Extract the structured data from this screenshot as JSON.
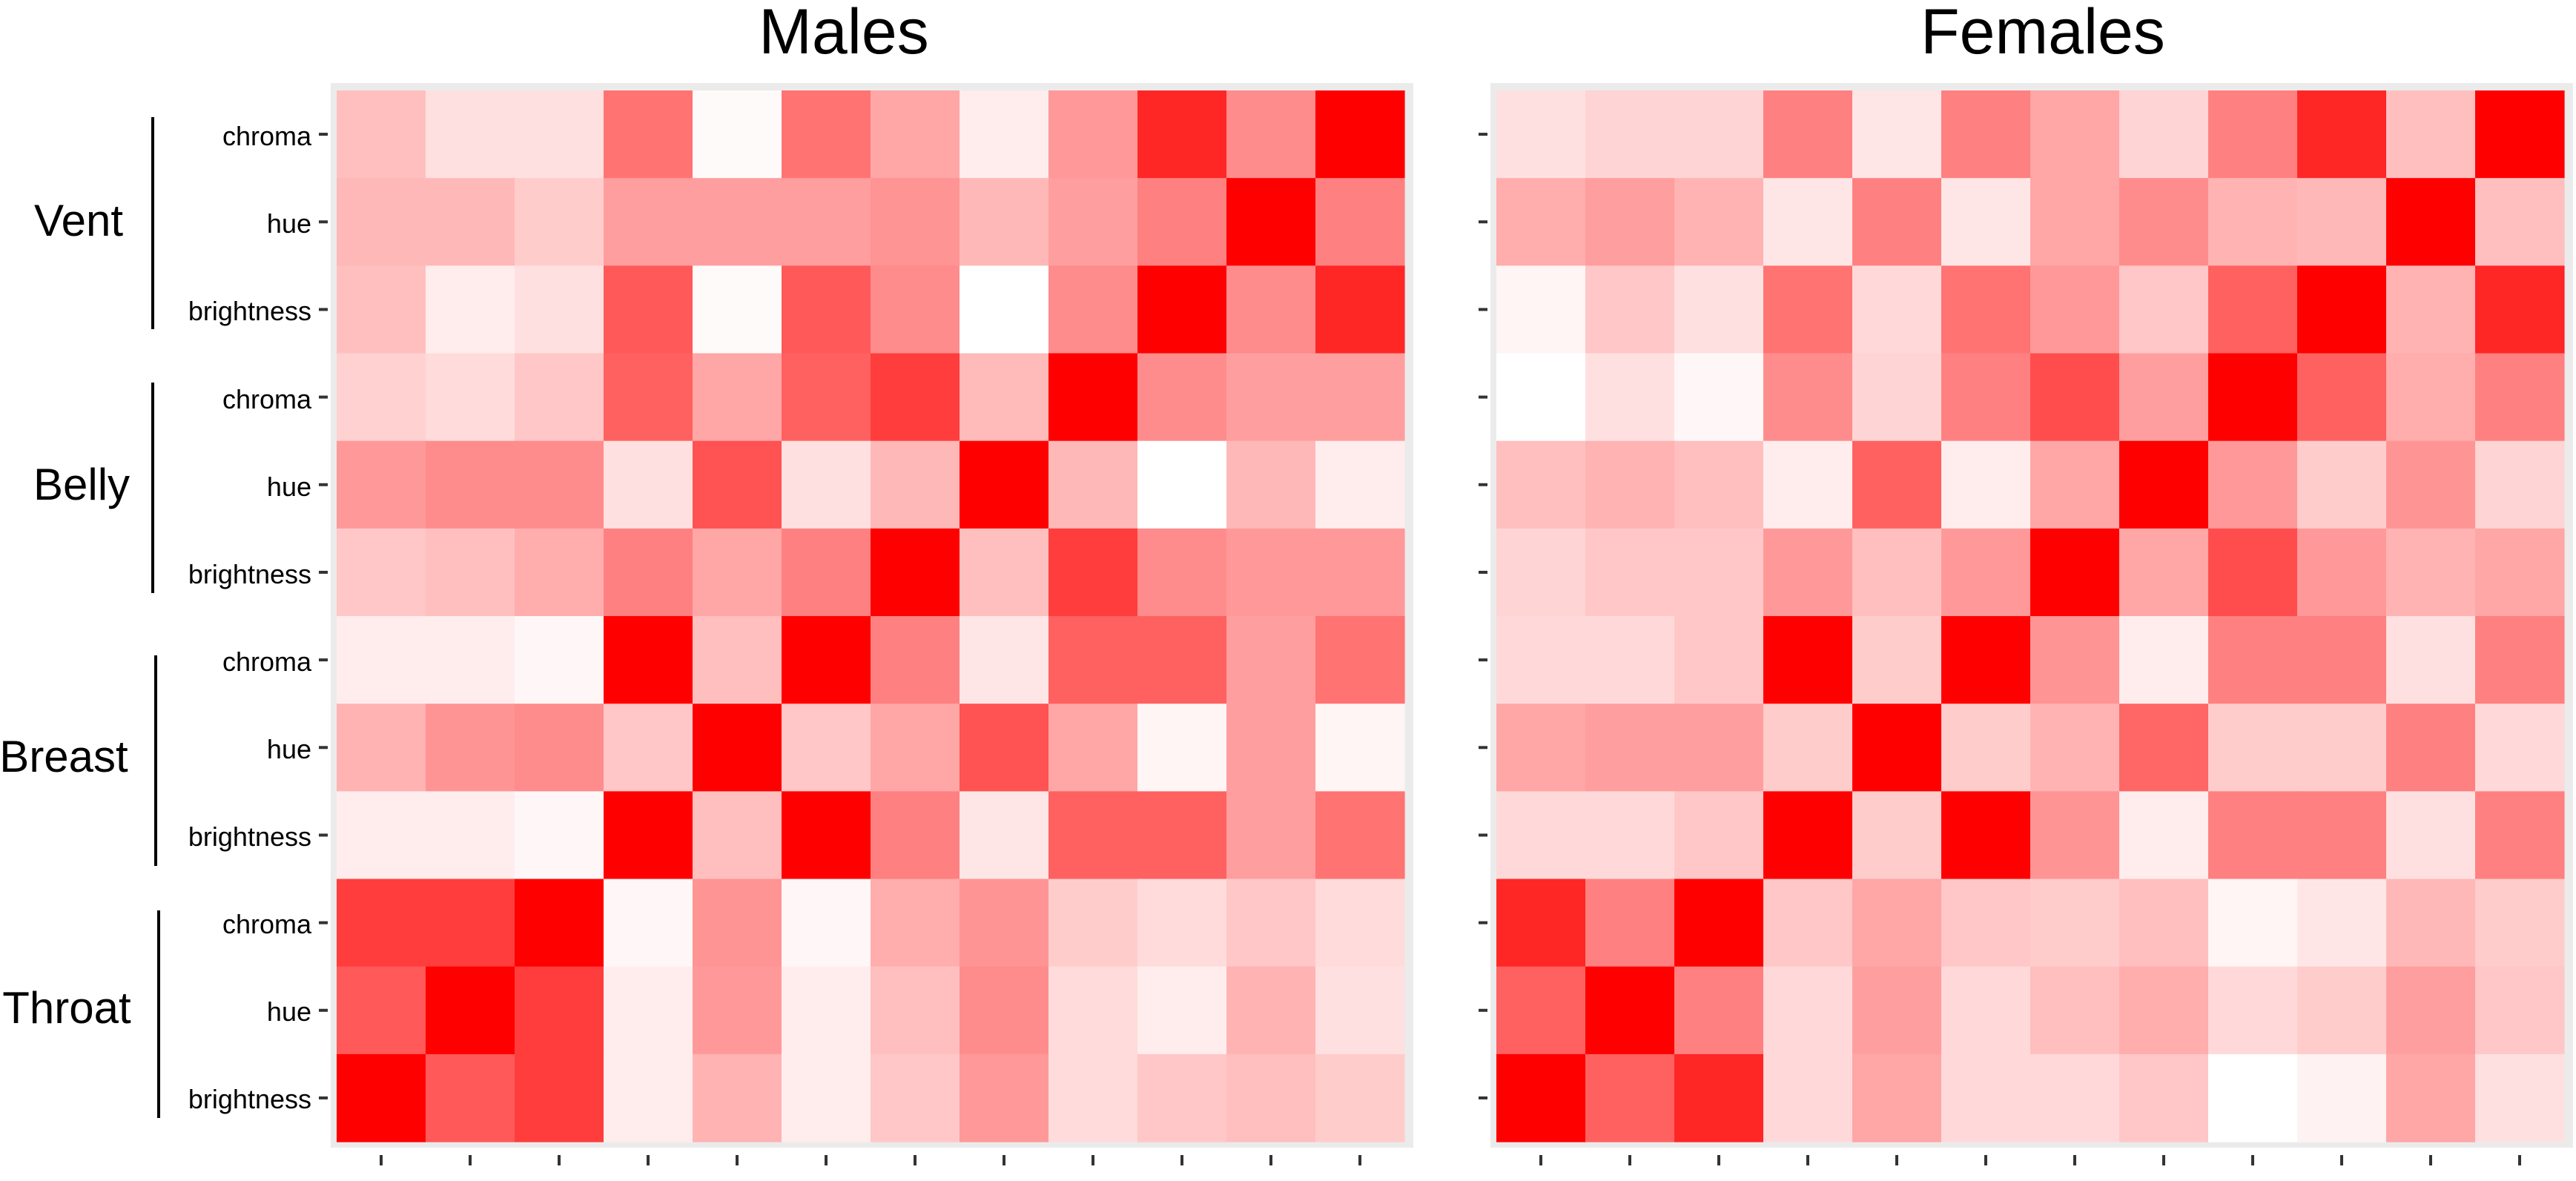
{
  "chart_data": {
    "type": "heatmap",
    "row_groups": [
      {
        "name": "Vent",
        "rows": [
          "chroma",
          "hue",
          "brightness"
        ]
      },
      {
        "name": "Belly",
        "rows": [
          "chroma",
          "hue",
          "brightness"
        ]
      },
      {
        "name": "Breast",
        "rows": [
          "chroma",
          "hue",
          "brightness"
        ]
      },
      {
        "name": "Throat",
        "rows": [
          "chroma",
          "hue",
          "brightness"
        ]
      }
    ],
    "columns": 12,
    "x_tick_labels": [],
    "color_scale": {
      "low": "#ffffff",
      "high": "#ff0000",
      "range": [
        0,
        1
      ]
    },
    "panel_background": "#ebebeb",
    "grid": true,
    "legend": "none",
    "panels": [
      {
        "title": "Males",
        "values": [
          [
            0.25,
            0.12,
            0.12,
            0.55,
            0.02,
            0.55,
            0.35,
            0.07,
            0.4,
            0.85,
            0.45,
            1.0
          ],
          [
            0.28,
            0.28,
            0.2,
            0.38,
            0.38,
            0.38,
            0.42,
            0.28,
            0.38,
            0.5,
            1.0,
            0.5
          ],
          [
            0.25,
            0.07,
            0.12,
            0.65,
            0.02,
            0.65,
            0.45,
            0.0,
            0.45,
            1.0,
            0.45,
            0.85
          ],
          [
            0.18,
            0.14,
            0.22,
            0.62,
            0.35,
            0.62,
            0.76,
            0.27,
            1.0,
            0.45,
            0.38,
            0.38
          ],
          [
            0.4,
            0.45,
            0.45,
            0.12,
            0.68,
            0.12,
            0.28,
            1.0,
            0.28,
            0.0,
            0.28,
            0.07
          ],
          [
            0.22,
            0.25,
            0.32,
            0.5,
            0.35,
            0.5,
            1.0,
            0.25,
            0.76,
            0.45,
            0.4,
            0.4
          ],
          [
            0.07,
            0.07,
            0.03,
            1.0,
            0.25,
            1.0,
            0.5,
            0.1,
            0.62,
            0.62,
            0.38,
            0.55
          ],
          [
            0.3,
            0.42,
            0.45,
            0.22,
            1.0,
            0.22,
            0.35,
            0.68,
            0.35,
            0.04,
            0.38,
            0.04
          ],
          [
            0.07,
            0.07,
            0.03,
            1.0,
            0.25,
            1.0,
            0.5,
            0.1,
            0.62,
            0.62,
            0.38,
            0.55
          ],
          [
            0.76,
            0.76,
            1.0,
            0.03,
            0.42,
            0.03,
            0.32,
            0.42,
            0.2,
            0.14,
            0.22,
            0.14
          ],
          [
            0.65,
            1.0,
            0.76,
            0.07,
            0.4,
            0.07,
            0.25,
            0.45,
            0.14,
            0.07,
            0.3,
            0.12
          ],
          [
            1.0,
            0.65,
            0.76,
            0.07,
            0.3,
            0.07,
            0.22,
            0.4,
            0.14,
            0.22,
            0.25,
            0.2
          ]
        ]
      },
      {
        "title": "Females",
        "values": [
          [
            0.12,
            0.17,
            0.17,
            0.5,
            0.1,
            0.5,
            0.35,
            0.17,
            0.5,
            0.85,
            0.25,
            1.0
          ],
          [
            0.32,
            0.38,
            0.3,
            0.1,
            0.5,
            0.1,
            0.35,
            0.45,
            0.3,
            0.28,
            1.0,
            0.25
          ],
          [
            0.04,
            0.22,
            0.12,
            0.55,
            0.15,
            0.55,
            0.4,
            0.22,
            0.62,
            1.0,
            0.3,
            0.85
          ],
          [
            0.0,
            0.12,
            0.03,
            0.45,
            0.17,
            0.5,
            0.7,
            0.38,
            1.0,
            0.62,
            0.32,
            0.5
          ],
          [
            0.25,
            0.3,
            0.25,
            0.07,
            0.62,
            0.07,
            0.35,
            1.0,
            0.4,
            0.2,
            0.42,
            0.17
          ],
          [
            0.17,
            0.22,
            0.22,
            0.4,
            0.25,
            0.4,
            1.0,
            0.35,
            0.7,
            0.4,
            0.3,
            0.35
          ],
          [
            0.15,
            0.15,
            0.22,
            1.0,
            0.2,
            1.0,
            0.42,
            0.07,
            0.5,
            0.5,
            0.12,
            0.5
          ],
          [
            0.35,
            0.38,
            0.38,
            0.2,
            1.0,
            0.2,
            0.3,
            0.6,
            0.2,
            0.2,
            0.5,
            0.15
          ],
          [
            0.15,
            0.15,
            0.22,
            1.0,
            0.2,
            1.0,
            0.42,
            0.07,
            0.5,
            0.5,
            0.12,
            0.5
          ],
          [
            0.85,
            0.5,
            1.0,
            0.22,
            0.35,
            0.22,
            0.2,
            0.25,
            0.04,
            0.1,
            0.28,
            0.2
          ],
          [
            0.62,
            1.0,
            0.5,
            0.15,
            0.38,
            0.15,
            0.25,
            0.32,
            0.15,
            0.2,
            0.38,
            0.22
          ],
          [
            1.0,
            0.62,
            0.85,
            0.15,
            0.35,
            0.15,
            0.15,
            0.22,
            0.0,
            0.05,
            0.35,
            0.12
          ]
        ]
      }
    ]
  }
}
